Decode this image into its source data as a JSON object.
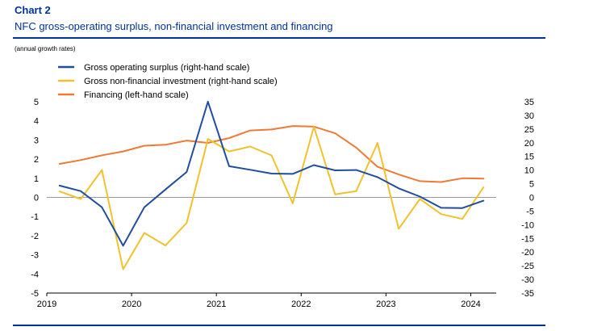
{
  "header": {
    "chart_label": "Chart 2",
    "title": "NFC gross-operating surplus, non-financial investment and financing",
    "subtitle": "(annual growth rates)"
  },
  "colors": {
    "brand": "#003299",
    "gross_operating_surplus": "#1f4e9e",
    "gross_non_financial_investment": "#f2c12e",
    "financing": "#ee7a36",
    "zero_line": "#9a9a9a"
  },
  "chart_data": {
    "type": "line",
    "title": "NFC gross-operating surplus, non-financial investment and financing",
    "subtitle": "(annual growth rates)",
    "x_ticks": [
      "2019",
      "2020",
      "2021",
      "2022",
      "2023",
      "2024"
    ],
    "x_range": [
      2019.0,
      2024.3
    ],
    "left_axis": {
      "ylim": [
        -5,
        5
      ],
      "ticks": [
        -5,
        -4,
        -3,
        -2,
        -1,
        0,
        1,
        2,
        3,
        4,
        5
      ]
    },
    "right_axis": {
      "ylim": [
        -35,
        35
      ],
      "ticks": [
        -35,
        -30,
        -25,
        -20,
        -15,
        -10,
        -5,
        0,
        5,
        10,
        15,
        20,
        25,
        30,
        35
      ]
    },
    "legend_position": "top-left",
    "grid": false,
    "series": [
      {
        "name": "Gross operating surplus (right-hand scale)",
        "axis": "right",
        "color": "#1f4e9e",
        "x": [
          2019.15,
          2019.4,
          2019.65,
          2019.9,
          2020.15,
          2020.4,
          2020.65,
          2020.9,
          2021.15,
          2021.4,
          2021.65,
          2021.9,
          2022.15,
          2022.4,
          2022.65,
          2022.9,
          2023.15,
          2023.4,
          2023.65,
          2023.9,
          2024.15
        ],
        "values": [
          4.3,
          2.3,
          -3.6,
          -17.7,
          -3.6,
          2.9,
          9.3,
          35.0,
          11.4,
          10.1,
          8.7,
          8.6,
          11.8,
          9.9,
          10.0,
          7.4,
          3.3,
          0.3,
          -3.8,
          -3.9,
          -1.2
        ]
      },
      {
        "name": "Gross non-financial investment (right-hand scale)",
        "axis": "right",
        "color": "#f2c12e",
        "x": [
          2019.15,
          2019.4,
          2019.65,
          2019.9,
          2020.15,
          2020.4,
          2020.65,
          2020.9,
          2021.15,
          2021.4,
          2021.65,
          2021.9,
          2022.15,
          2022.4,
          2022.65,
          2022.9,
          2023.15,
          2023.4,
          2023.65,
          2023.9,
          2024.15
        ],
        "values": [
          2.2,
          -0.6,
          10.0,
          -26.3,
          -13.0,
          -17.6,
          -9.3,
          21.4,
          16.8,
          18.6,
          15.4,
          -2.2,
          25.8,
          1.1,
          2.3,
          19.9,
          -11.5,
          -0.6,
          -6.1,
          -7.9,
          3.7
        ]
      },
      {
        "name": "Financing (left-hand scale)",
        "axis": "left",
        "color": "#ee7a36",
        "x": [
          2019.15,
          2019.4,
          2019.65,
          2019.9,
          2020.15,
          2020.4,
          2020.65,
          2020.9,
          2021.15,
          2021.4,
          2021.65,
          2021.9,
          2022.15,
          2022.4,
          2022.65,
          2022.9,
          2023.15,
          2023.4,
          2023.65,
          2023.9,
          2024.15
        ],
        "values": [
          1.75,
          1.95,
          2.2,
          2.4,
          2.7,
          2.75,
          2.97,
          2.85,
          3.1,
          3.5,
          3.55,
          3.73,
          3.7,
          3.35,
          2.6,
          1.6,
          1.2,
          0.85,
          0.8,
          1.0,
          0.98
        ]
      }
    ]
  }
}
